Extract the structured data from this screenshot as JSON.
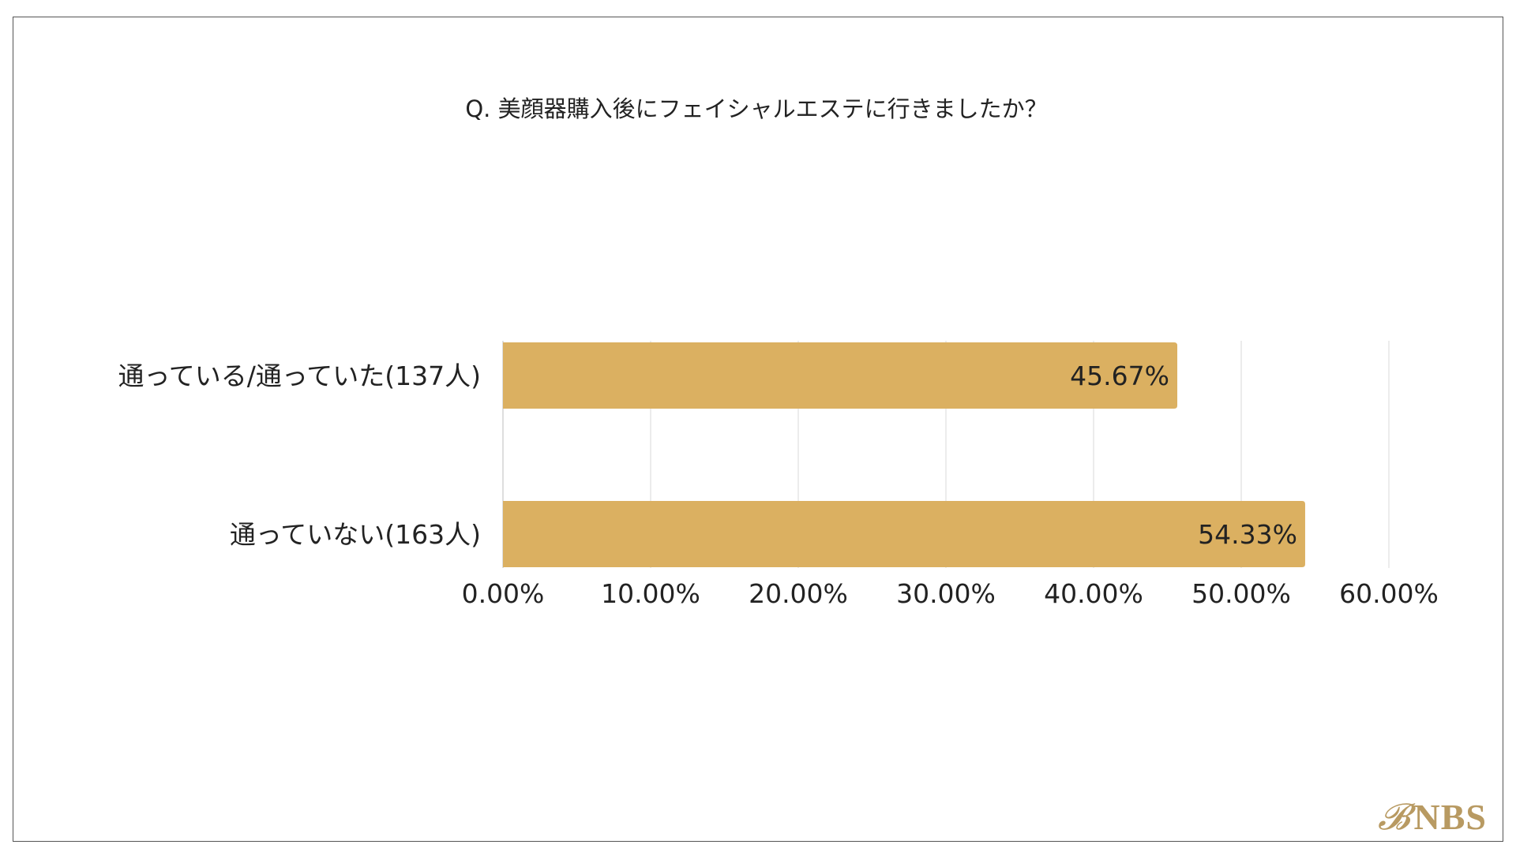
{
  "chart_data": {
    "type": "bar",
    "orientation": "horizontal",
    "title": "Q.  美顔器購入後にフェイシャルエステに行きましたか？",
    "categories": [
      "通っている/通っていた(137人)",
      "通っていない(163人)"
    ],
    "values": [
      45.67,
      54.33
    ],
    "value_labels": [
      "45.67%",
      "54.33%"
    ],
    "xlim": [
      0,
      60
    ],
    "x_ticks": [
      0,
      10,
      20,
      30,
      40,
      50,
      60
    ],
    "x_tick_labels": [
      "0.00%",
      "10.00%",
      "20.00%",
      "30.00%",
      "40.00%",
      "50.00%",
      "60.00%"
    ],
    "bar_color": "#dbb061",
    "grid": true,
    "legend": "none"
  },
  "logo": {
    "mark": "𝓑",
    "text": "NBS",
    "color": "#b89a62"
  }
}
